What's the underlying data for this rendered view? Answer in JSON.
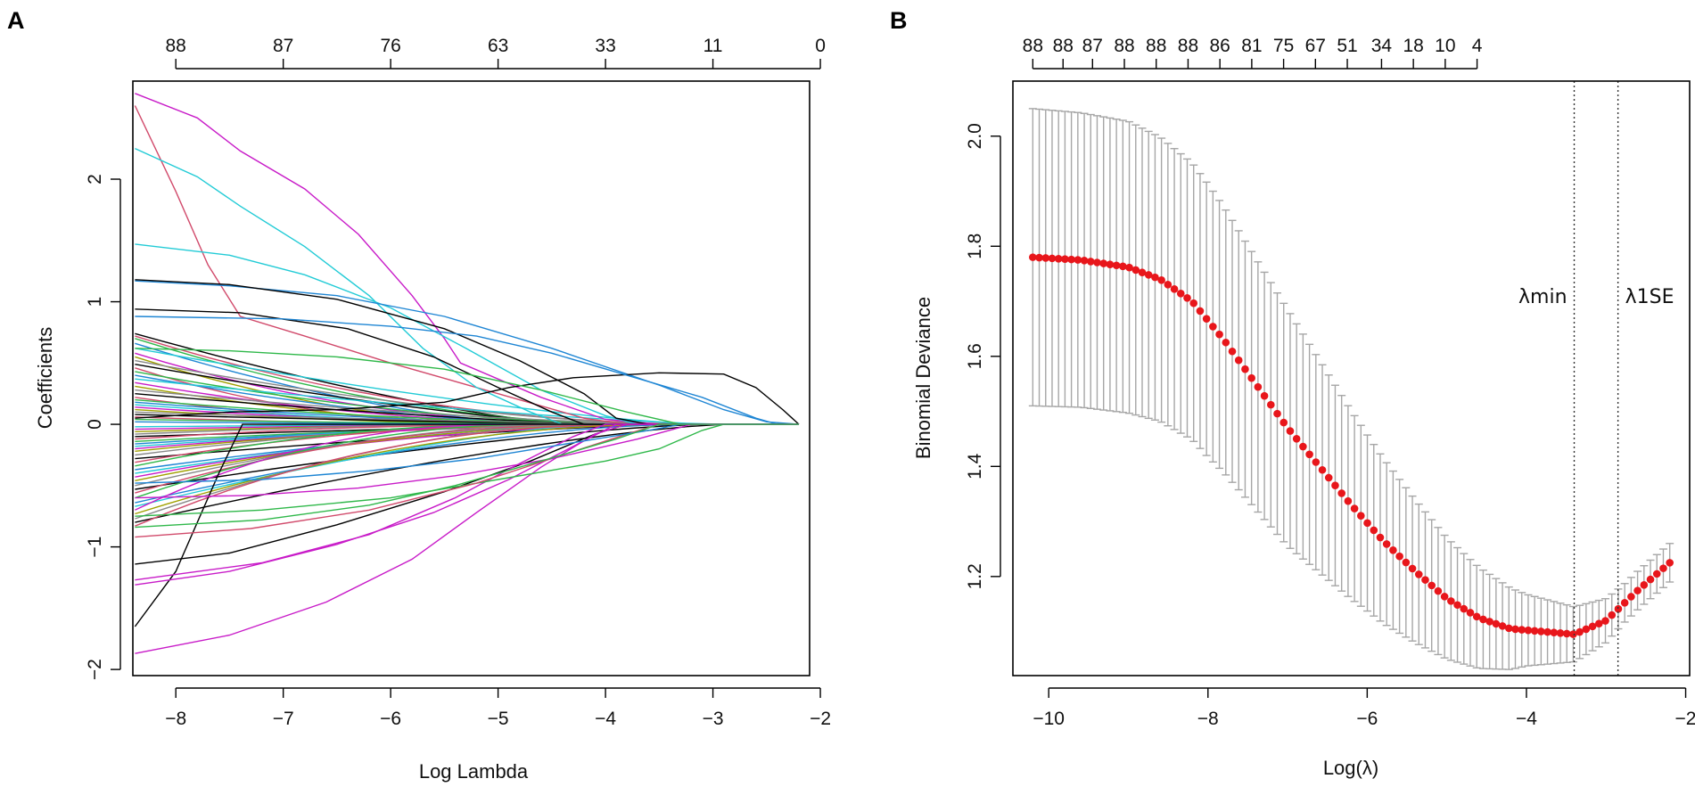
{
  "figure": {
    "panels": [
      {
        "id": "A",
        "letter": "A"
      },
      {
        "id": "B",
        "letter": "B"
      }
    ]
  },
  "chart_data": [
    {
      "panel": "A",
      "type": "line",
      "title": "",
      "xlabel": "Log Lambda",
      "ylabel": "Coefficients",
      "xlim": [
        -8.4,
        -2.1
      ],
      "ylim": [
        -2.05,
        2.8
      ],
      "xticks": [
        -8,
        -7,
        -6,
        -5,
        -4,
        -3,
        -2
      ],
      "xtick_labels": [
        "−8",
        "−7",
        "−6",
        "−5",
        "−4",
        "−3",
        "−2"
      ],
      "yticks": [
        -2,
        -1,
        0,
        1,
        2
      ],
      "ytick_labels": [
        "−2",
        "−1",
        "0",
        "1",
        "2"
      ],
      "top_axis": {
        "positions": [
          -8,
          -7,
          -6,
          -5,
          -4,
          -3,
          -2
        ],
        "labels": [
          "88",
          "87",
          "76",
          "63",
          "33",
          "11",
          "0"
        ]
      },
      "x_start": -8.38,
      "x_end": -2.2,
      "n_series": 88,
      "series": [
        {
          "color": "#c81bc8",
          "points": [
            [
              -8.38,
              2.7
            ],
            [
              -7.8,
              2.5
            ],
            [
              -7.4,
              2.23
            ],
            [
              -6.8,
              1.92
            ],
            [
              -6.3,
              1.55
            ],
            [
              -5.8,
              1.05
            ],
            [
              -5.5,
              0.7
            ],
            [
              -5.35,
              0.5
            ],
            [
              -4.6,
              0.22
            ],
            [
              -4.0,
              0.04
            ],
            [
              -3.5,
              0.0
            ],
            [
              -2.2,
              0.0
            ]
          ]
        },
        {
          "color": "#d14a6b",
          "points": [
            [
              -8.38,
              2.6
            ],
            [
              -8.0,
              1.9
            ],
            [
              -7.7,
              1.3
            ],
            [
              -7.4,
              0.88
            ],
            [
              -6.8,
              0.72
            ],
            [
              -6.0,
              0.5
            ],
            [
              -5.0,
              0.25
            ],
            [
              -4.2,
              0.05
            ],
            [
              -3.8,
              0.0
            ],
            [
              -2.2,
              0.0
            ]
          ]
        },
        {
          "color": "#22cbd6",
          "points": [
            [
              -8.38,
              2.25
            ],
            [
              -7.8,
              2.02
            ],
            [
              -7.4,
              1.78
            ],
            [
              -6.8,
              1.45
            ],
            [
              -6.2,
              1.05
            ],
            [
              -5.7,
              0.62
            ],
            [
              -5.2,
              0.3
            ],
            [
              -4.7,
              0.1
            ],
            [
              -4.4,
              0.0
            ],
            [
              -2.2,
              0.0
            ]
          ]
        },
        {
          "color": "#22cbd6",
          "points": [
            [
              -8.38,
              1.47
            ],
            [
              -7.5,
              1.38
            ],
            [
              -6.8,
              1.22
            ],
            [
              -6.0,
              0.95
            ],
            [
              -5.3,
              0.62
            ],
            [
              -4.6,
              0.28
            ],
            [
              -4.0,
              0.07
            ],
            [
              -3.7,
              0.0
            ],
            [
              -2.2,
              0.0
            ]
          ]
        },
        {
          "color": "#1f86d4",
          "points": [
            [
              -8.38,
              1.17
            ],
            [
              -7.5,
              1.13
            ],
            [
              -6.5,
              1.05
            ],
            [
              -5.5,
              0.88
            ],
            [
              -4.5,
              0.62
            ],
            [
              -3.5,
              0.32
            ],
            [
              -2.9,
              0.12
            ],
            [
              -2.5,
              0.02
            ],
            [
              -2.2,
              0.0
            ]
          ]
        },
        {
          "color": "#000000",
          "points": [
            [
              -8.38,
              1.18
            ],
            [
              -7.5,
              1.14
            ],
            [
              -6.5,
              1.02
            ],
            [
              -5.5,
              0.78
            ],
            [
              -4.8,
              0.52
            ],
            [
              -4.2,
              0.25
            ],
            [
              -3.9,
              0.05
            ],
            [
              -3.6,
              0.0
            ],
            [
              -2.2,
              0.0
            ]
          ]
        },
        {
          "color": "#000000",
          "points": [
            [
              -8.38,
              0.94
            ],
            [
              -7.4,
              0.91
            ],
            [
              -6.4,
              0.78
            ],
            [
              -5.6,
              0.55
            ],
            [
              -5.0,
              0.3
            ],
            [
              -4.5,
              0.1
            ],
            [
              -4.2,
              0.0
            ],
            [
              -2.2,
              0.0
            ]
          ]
        },
        {
          "color": "#000000",
          "points": [
            [
              -8.38,
              0.05
            ],
            [
              -7.5,
              0.1
            ],
            [
              -6.5,
              0.12
            ],
            [
              -5.5,
              0.18
            ],
            [
              -4.9,
              0.3
            ],
            [
              -4.3,
              0.38
            ],
            [
              -3.5,
              0.42
            ],
            [
              -2.9,
              0.41
            ],
            [
              -2.6,
              0.3
            ],
            [
              -2.35,
              0.12
            ],
            [
              -2.2,
              0.0
            ]
          ]
        },
        {
          "color": "#2fb84a",
          "points": [
            [
              -8.38,
              0.62
            ],
            [
              -7.5,
              0.6
            ],
            [
              -6.5,
              0.55
            ],
            [
              -5.5,
              0.45
            ],
            [
              -4.6,
              0.28
            ],
            [
              -3.8,
              0.1
            ],
            [
              -3.3,
              0.0
            ],
            [
              -2.2,
              0.0
            ]
          ]
        },
        {
          "color": "#1f86d4",
          "points": [
            [
              -8.38,
              0.88
            ],
            [
              -7.0,
              0.86
            ],
            [
              -6.0,
              0.8
            ],
            [
              -5.2,
              0.72
            ],
            [
              -4.5,
              0.58
            ],
            [
              -3.8,
              0.4
            ],
            [
              -3.1,
              0.22
            ],
            [
              -2.6,
              0.05
            ],
            [
              -2.4,
              0.0
            ],
            [
              -2.2,
              0.0
            ]
          ]
        },
        {
          "color": "#000000",
          "points": [
            [
              -8.38,
              -1.65
            ],
            [
              -8.0,
              -1.2
            ],
            [
              -7.6,
              -0.4
            ],
            [
              -7.38,
              0.0
            ],
            [
              -2.2,
              0.0
            ]
          ]
        },
        {
          "color": "#000000",
          "points": [
            [
              -8.38,
              -1.14
            ],
            [
              -7.5,
              -1.05
            ],
            [
              -6.5,
              -0.82
            ],
            [
              -5.5,
              -0.55
            ],
            [
              -4.7,
              -0.3
            ],
            [
              -4.1,
              -0.08
            ],
            [
              -3.8,
              0.0
            ],
            [
              -2.2,
              0.0
            ]
          ]
        },
        {
          "color": "#c81bc8",
          "points": [
            [
              -8.38,
              -1.87
            ],
            [
              -7.5,
              -1.72
            ],
            [
              -6.6,
              -1.45
            ],
            [
              -5.8,
              -1.1
            ],
            [
              -5.2,
              -0.72
            ],
            [
              -4.6,
              -0.35
            ],
            [
              -4.1,
              -0.08
            ],
            [
              -3.8,
              0.0
            ],
            [
              -2.2,
              0.0
            ]
          ]
        },
        {
          "color": "#c81bc8",
          "points": [
            [
              -8.38,
              -1.31
            ],
            [
              -7.5,
              -1.2
            ],
            [
              -6.5,
              -0.98
            ],
            [
              -5.6,
              -0.72
            ],
            [
              -4.9,
              -0.45
            ],
            [
              -4.3,
              -0.18
            ],
            [
              -3.9,
              0.0
            ],
            [
              -2.2,
              0.0
            ]
          ]
        },
        {
          "color": "#c81bc8",
          "points": [
            [
              -8.38,
              -1.27
            ],
            [
              -7.2,
              -1.13
            ],
            [
              -6.2,
              -0.9
            ],
            [
              -5.4,
              -0.6
            ],
            [
              -4.8,
              -0.32
            ],
            [
              -4.3,
              -0.1
            ],
            [
              -4.0,
              0.0
            ],
            [
              -2.2,
              0.0
            ]
          ]
        },
        {
          "color": "#2fb84a",
          "points": [
            [
              -8.38,
              -0.75
            ],
            [
              -7.2,
              -0.7
            ],
            [
              -6.0,
              -0.6
            ],
            [
              -5.0,
              -0.45
            ],
            [
              -4.0,
              -0.3
            ],
            [
              -3.5,
              -0.2
            ],
            [
              -3.1,
              -0.05
            ],
            [
              -2.9,
              0.0
            ],
            [
              -2.2,
              0.0
            ]
          ]
        },
        {
          "color": "#d14a6b",
          "points": [
            [
              -8.38,
              -0.92
            ],
            [
              -7.3,
              -0.85
            ],
            [
              -6.2,
              -0.7
            ],
            [
              -5.2,
              -0.48
            ],
            [
              -4.4,
              -0.25
            ],
            [
              -3.8,
              -0.08
            ],
            [
              -3.5,
              0.0
            ],
            [
              -2.2,
              0.0
            ]
          ]
        },
        {
          "color": "#1f86d4",
          "points": [
            [
              -8.38,
              -0.48
            ],
            [
              -7.2,
              -0.45
            ],
            [
              -6.2,
              -0.38
            ],
            [
              -5.2,
              -0.28
            ],
            [
              -4.3,
              -0.15
            ],
            [
              -3.6,
              -0.05
            ],
            [
              -3.3,
              0.0
            ],
            [
              -2.2,
              0.0
            ]
          ]
        },
        {
          "color": "#c81bc8",
          "points": [
            [
              -8.38,
              -0.6
            ],
            [
              -7.3,
              -0.58
            ],
            [
              -6.3,
              -0.52
            ],
            [
              -5.4,
              -0.42
            ],
            [
              -4.5,
              -0.28
            ],
            [
              -3.7,
              -0.12
            ],
            [
              -3.2,
              0.0
            ],
            [
              -2.2,
              0.0
            ]
          ]
        },
        {
          "color": "#2fb84a",
          "points": [
            [
              -8.38,
              -0.84
            ],
            [
              -7.2,
              -0.78
            ],
            [
              -6.2,
              -0.66
            ],
            [
              -5.4,
              -0.5
            ],
            [
              -4.6,
              -0.3
            ],
            [
              -3.9,
              -0.12
            ],
            [
              -3.5,
              0.0
            ],
            [
              -2.2,
              0.0
            ]
          ]
        }
      ],
      "minor_series_colors": [
        "#000000",
        "#d14a6b",
        "#2fb84a",
        "#1f86d4",
        "#22cbd6",
        "#c81bc8",
        "#a0a000",
        "#888888"
      ],
      "minor_series_start_values": [
        0.74,
        0.72,
        0.7,
        0.66,
        0.62,
        0.58,
        0.55,
        0.52,
        0.49,
        0.46,
        0.43,
        0.4,
        0.37,
        0.34,
        0.31,
        0.28,
        0.25,
        0.22,
        0.2,
        0.18,
        0.16,
        0.14,
        0.12,
        0.1,
        0.08,
        0.06,
        0.04,
        0.02,
        -0.02,
        -0.04,
        -0.06,
        -0.08,
        -0.1,
        -0.12,
        -0.14,
        -0.16,
        -0.18,
        -0.2,
        -0.22,
        -0.25,
        -0.28,
        -0.31,
        -0.34,
        -0.37,
        -0.4,
        -0.43,
        -0.46,
        -0.5,
        -0.53,
        -0.56,
        -0.6,
        -0.64,
        -0.67,
        -0.7,
        -0.73,
        -0.77,
        -0.8,
        -0.83
      ],
      "minor_series_zero_at": [
        -4.9,
        -4.7,
        -4.5,
        -4.3,
        -4.1,
        -3.9,
        -3.7,
        -3.5,
        -3.3,
        -3.1,
        -2.9
      ]
    },
    {
      "panel": "B",
      "type": "scatter",
      "title": "",
      "xlabel": "Log(λ)",
      "ylabel": "Binomial Deviance",
      "xlim": [
        -10.45,
        -1.95
      ],
      "ylim": [
        1.02,
        2.1
      ],
      "xticks": [
        -10,
        -8,
        -6,
        -4,
        -2
      ],
      "xtick_labels": [
        "−10",
        "−8",
        "−6",
        "−4",
        "−2"
      ],
      "yticks": [
        1.2,
        1.4,
        1.6,
        1.8,
        2.0
      ],
      "ytick_labels": [
        "1.2",
        "1.4",
        "1.6",
        "1.8",
        "2.0"
      ],
      "top_axis": {
        "positions": [
          -10.2,
          -9.82,
          -9.45,
          -9.05,
          -8.65,
          -8.25,
          -7.85,
          -7.45,
          -7.05,
          -6.65,
          -6.25,
          -5.82,
          -5.42,
          -5.02,
          -4.62
        ],
        "labels": [
          "88",
          "88",
          "87",
          "88",
          "88",
          "88",
          "86",
          "81",
          "75",
          "67",
          "51",
          "34",
          "18",
          "10",
          "4"
        ]
      },
      "x_start": -10.2,
      "x_end": -2.2,
      "n_points": 100,
      "mean_profile": [
        [
          -10.2,
          1.78
        ],
        [
          -9.6,
          1.775
        ],
        [
          -9.0,
          1.762
        ],
        [
          -8.6,
          1.74
        ],
        [
          -8.2,
          1.7
        ],
        [
          -7.8,
          1.63
        ],
        [
          -7.4,
          1.55
        ],
        [
          -7.0,
          1.47
        ],
        [
          -6.6,
          1.4
        ],
        [
          -6.2,
          1.33
        ],
        [
          -5.8,
          1.265
        ],
        [
          -5.4,
          1.21
        ],
        [
          -5.0,
          1.16
        ],
        [
          -4.6,
          1.125
        ],
        [
          -4.2,
          1.105
        ],
        [
          -3.8,
          1.1
        ],
        [
          -3.4,
          1.095
        ],
        [
          -3.0,
          1.12
        ],
        [
          -2.6,
          1.175
        ],
        [
          -2.2,
          1.225
        ]
      ],
      "error_profile": [
        [
          -10.2,
          0.27
        ],
        [
          -9.0,
          0.265
        ],
        [
          -8.0,
          0.248
        ],
        [
          -7.0,
          0.215
        ],
        [
          -6.0,
          0.16
        ],
        [
          -5.0,
          0.11
        ],
        [
          -4.0,
          0.065
        ],
        [
          -3.4,
          0.05
        ],
        [
          -2.8,
          0.035
        ],
        [
          -2.2,
          0.035
        ]
      ],
      "reference_lines": [
        {
          "x": -3.4,
          "label": "λmin"
        },
        {
          "x": -2.85,
          "label": "λ1SE"
        }
      ],
      "colors": {
        "points": "#e8161b",
        "error_bars": "#a6a6a6"
      }
    }
  ]
}
